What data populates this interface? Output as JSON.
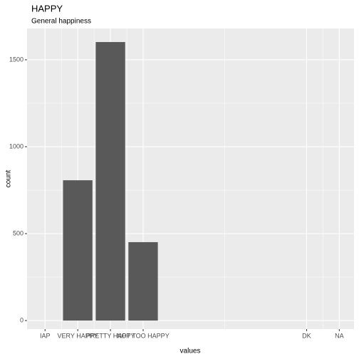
{
  "chart_data": {
    "type": "bar",
    "title": "HAPPY",
    "subtitle": "General happiness",
    "x_label": "values",
    "y_label": "count",
    "x": [
      1,
      2,
      3
    ],
    "values": [
      807,
      1602,
      451
    ],
    "color": "#595959",
    "xlim": [
      -0.55,
      9.45
    ],
    "xticks": [
      {
        "value": 0,
        "label": "IAP"
      },
      {
        "value": 1,
        "label": "VERY HAPPY"
      },
      {
        "value": 2,
        "label": "PRETTY HAPPY"
      },
      {
        "value": 3,
        "label": "NOT TOO HAPPY"
      },
      {
        "value": 8,
        "label": "DK"
      },
      {
        "value": 9,
        "label": "NA"
      }
    ],
    "ylim": [
      -49,
      1680
    ],
    "yticks": [
      0,
      500,
      1000,
      1500
    ],
    "grid": true
  }
}
